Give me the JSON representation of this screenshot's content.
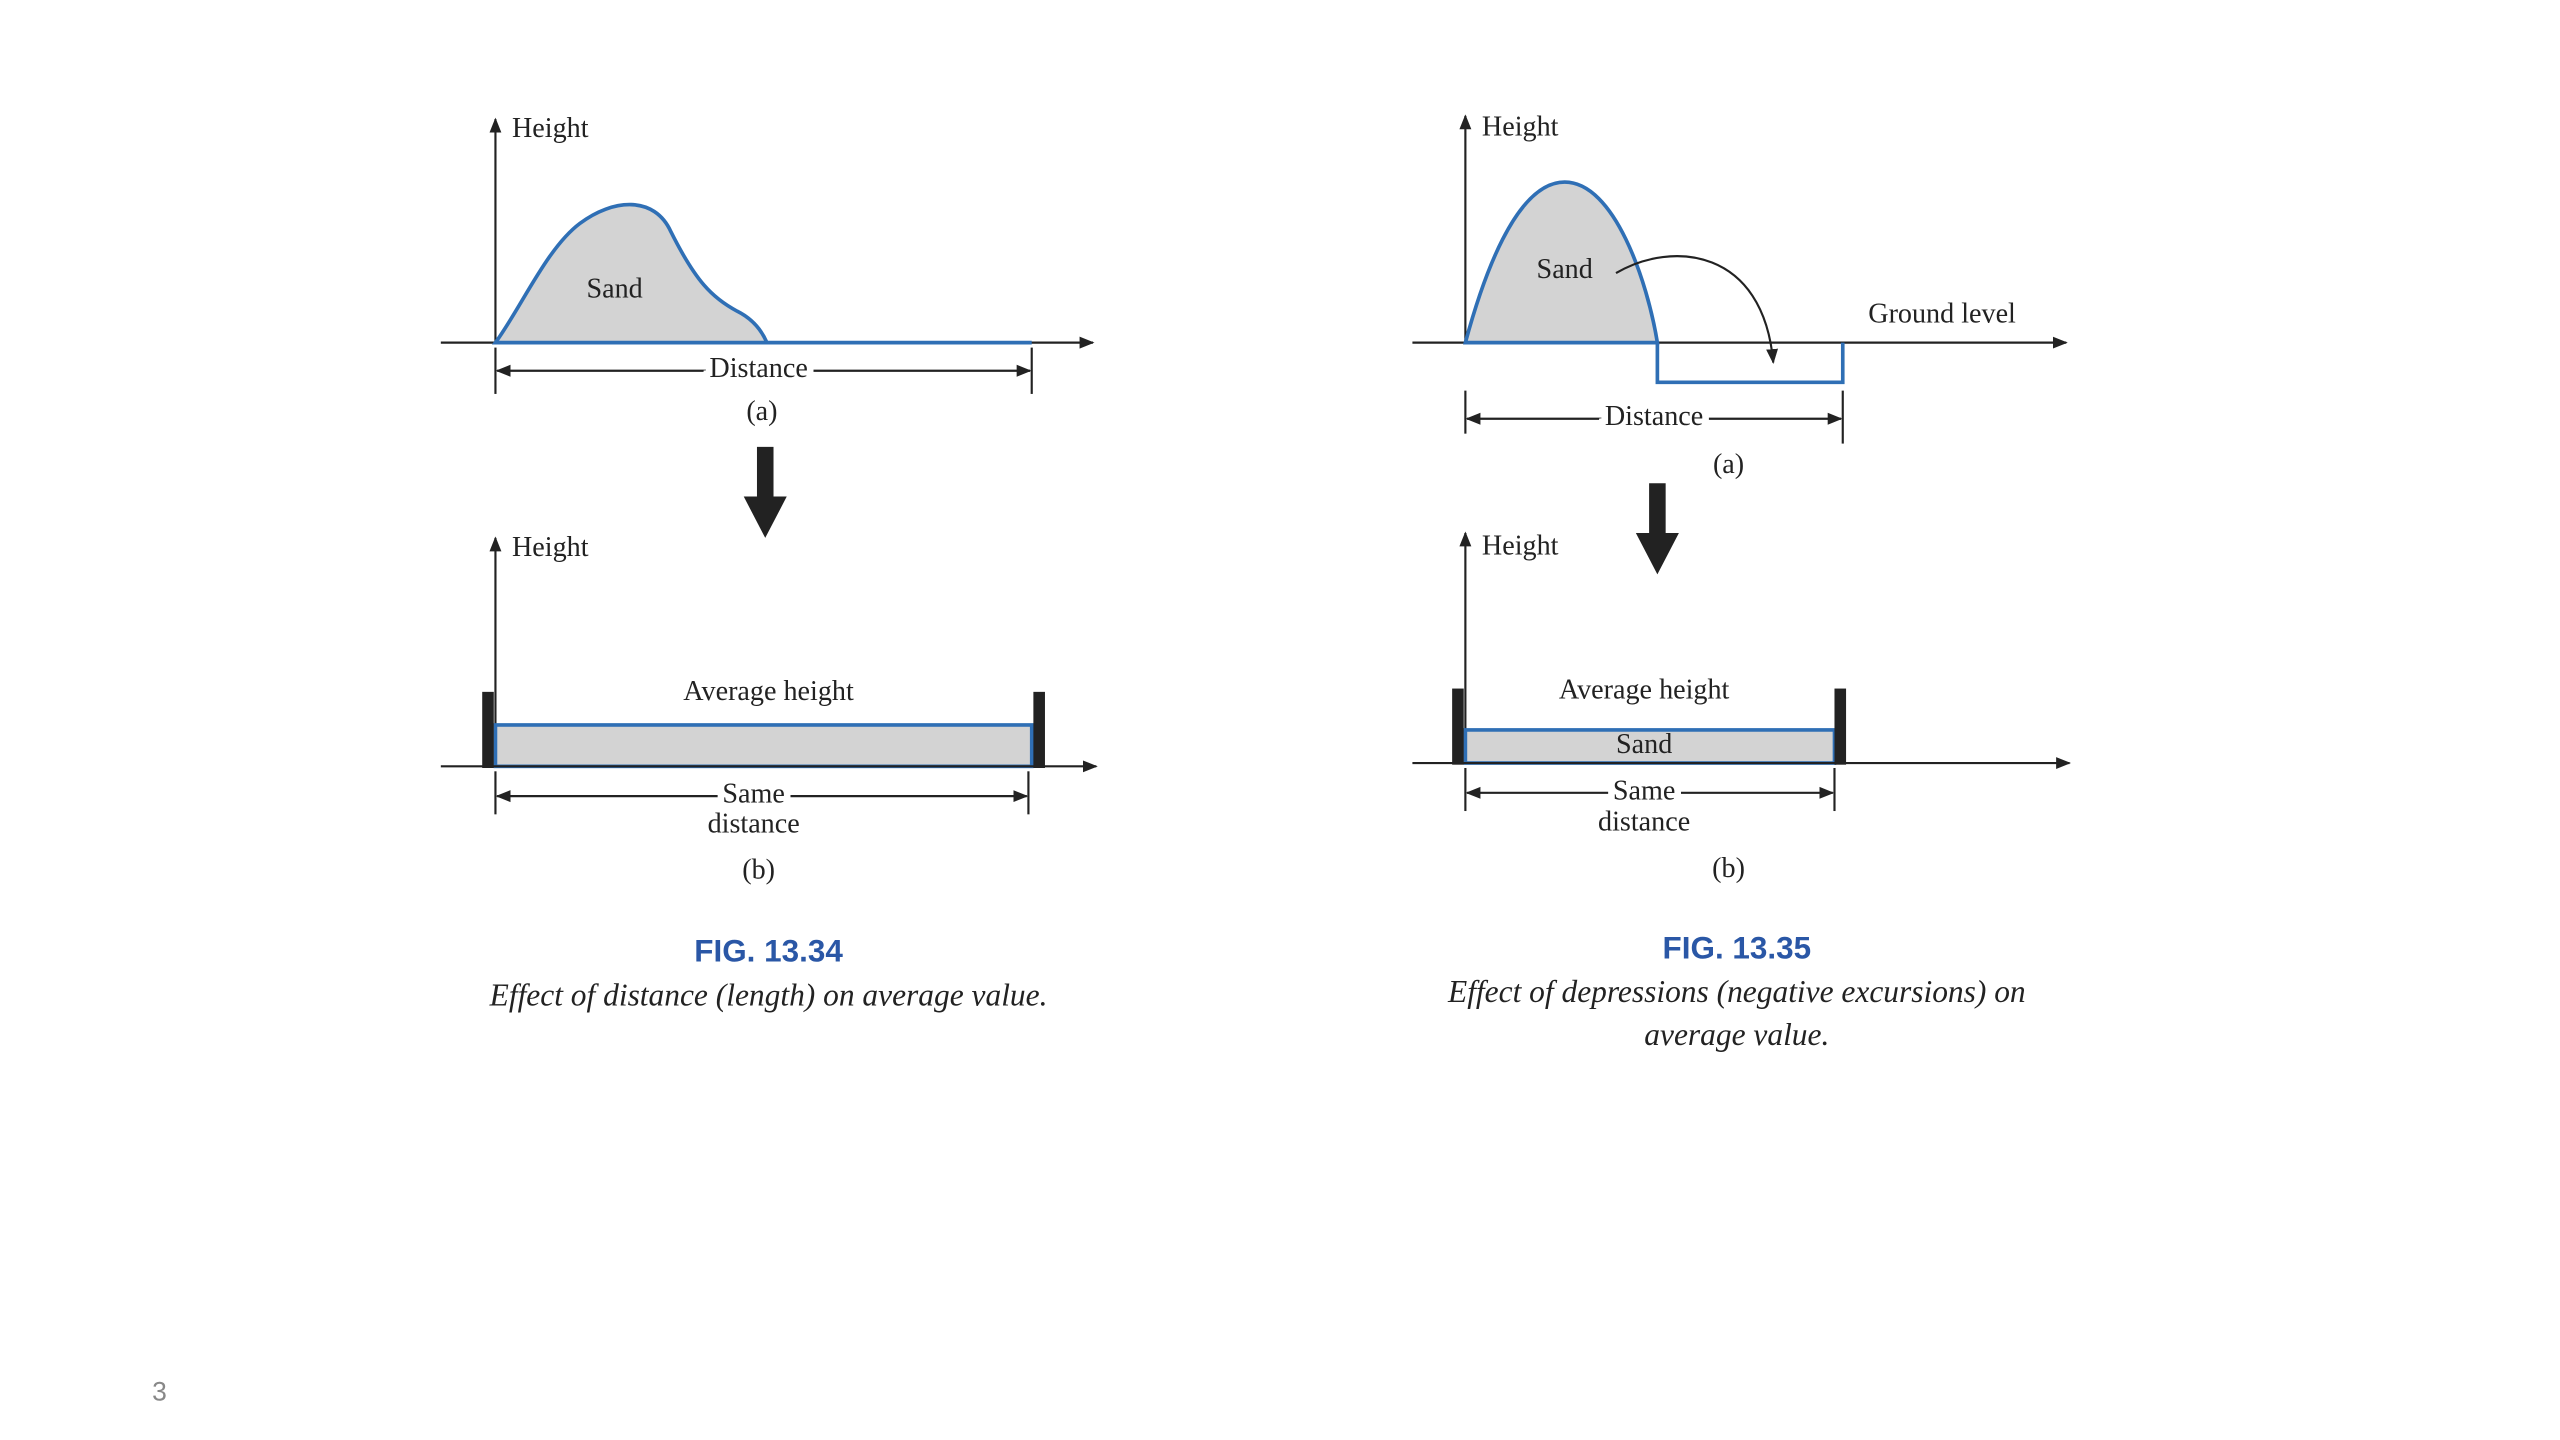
{
  "figures": [
    {
      "panel_a": {
        "y_label": "Height",
        "shape_label": "Sand",
        "x_label": "Distance",
        "tag": "(a)"
      },
      "panel_b": {
        "y_label": "Height",
        "bar_label": "Average height",
        "x_label_lines": [
          "Same",
          "distance"
        ],
        "tag": "(b)"
      },
      "caption_title": "FIG. 13.34",
      "caption_lines": [
        "Effect of distance (length) on average value."
      ]
    },
    {
      "panel_a": {
        "y_label": "Height",
        "shape_label": "Sand",
        "ground_label": "Ground level",
        "x_label": "Distance",
        "tag": "(a)"
      },
      "panel_b": {
        "y_label": "Height",
        "bar_label": "Average height",
        "fill_label": "Sand",
        "x_label_lines": [
          "Same",
          "distance"
        ],
        "tag": "(b)"
      },
      "caption_title": "FIG. 13.35",
      "caption_lines": [
        "Effect of depressions (negative excursions) on",
        "average value."
      ]
    }
  ],
  "page_number": "3"
}
